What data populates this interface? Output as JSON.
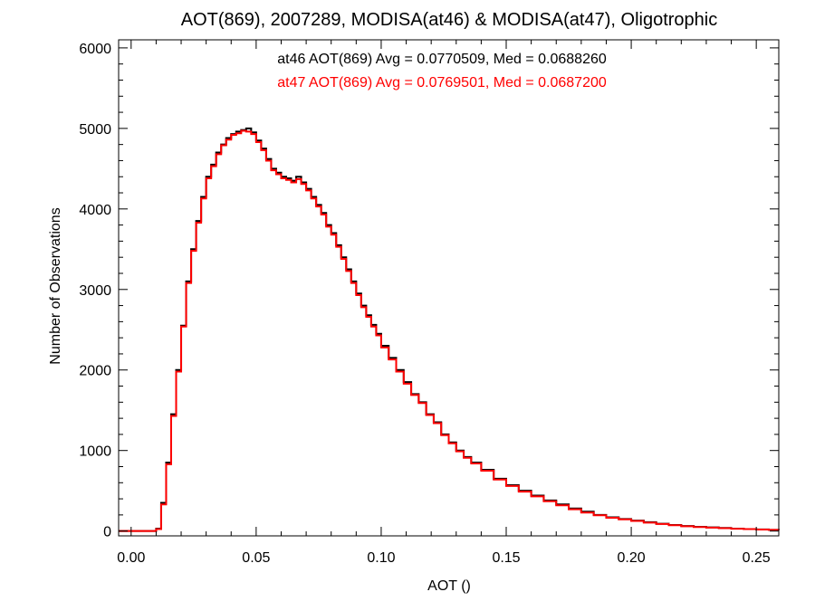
{
  "chart_data": {
    "type": "line",
    "title": "AOT(869), 2007289, MODISA(at46) & MODISA(at47), Oligotrophic",
    "xlabel": "AOT ()",
    "ylabel": "Number of Observations",
    "xlim": [
      -0.005,
      0.259
    ],
    "ylim": [
      -60,
      6100
    ],
    "x_ticks": [
      0.0,
      0.05,
      0.1,
      0.15,
      0.2,
      0.25
    ],
    "x_tick_labels": [
      "0.00",
      "0.05",
      "0.10",
      "0.15",
      "0.20",
      "0.25"
    ],
    "y_ticks": [
      0,
      1000,
      2000,
      3000,
      4000,
      5000,
      6000
    ],
    "y_tick_labels": [
      "0",
      "1000",
      "2000",
      "3000",
      "4000",
      "5000",
      "6000"
    ],
    "grid": false,
    "step": true,
    "annotations": [
      {
        "text": "at46 AOT(869) Avg = 0.0770509, Med = 0.0688260",
        "color": "#000000"
      },
      {
        "text": "at47 AOT(869) Avg = 0.0769501, Med = 0.0687200",
        "color": "#ff0000"
      }
    ],
    "x": [
      -0.005,
      0.0,
      0.005,
      0.01,
      0.012,
      0.014,
      0.016,
      0.018,
      0.02,
      0.022,
      0.024,
      0.026,
      0.028,
      0.03,
      0.032,
      0.034,
      0.036,
      0.038,
      0.04,
      0.042,
      0.044,
      0.046,
      0.048,
      0.05,
      0.052,
      0.054,
      0.056,
      0.058,
      0.06,
      0.062,
      0.064,
      0.066,
      0.068,
      0.07,
      0.072,
      0.074,
      0.076,
      0.078,
      0.08,
      0.082,
      0.084,
      0.086,
      0.088,
      0.09,
      0.092,
      0.094,
      0.096,
      0.098,
      0.1,
      0.103,
      0.106,
      0.109,
      0.112,
      0.115,
      0.118,
      0.121,
      0.124,
      0.127,
      0.13,
      0.133,
      0.136,
      0.14,
      0.145,
      0.15,
      0.155,
      0.16,
      0.165,
      0.17,
      0.175,
      0.18,
      0.185,
      0.19,
      0.195,
      0.2,
      0.205,
      0.21,
      0.215,
      0.22,
      0.225,
      0.23,
      0.235,
      0.24,
      0.245,
      0.25,
      0.255,
      0.259
    ],
    "series": [
      {
        "color": "#000000",
        "values": [
          0,
          0,
          0,
          30,
          350,
          850,
          1450,
          2000,
          2550,
          3100,
          3500,
          3850,
          4150,
          4400,
          4550,
          4700,
          4800,
          4880,
          4930,
          4960,
          4980,
          5000,
          4950,
          4850,
          4750,
          4620,
          4500,
          4450,
          4400,
          4380,
          4350,
          4400,
          4330,
          4250,
          4150,
          4050,
          3950,
          3800,
          3700,
          3550,
          3400,
          3250,
          3100,
          2950,
          2800,
          2680,
          2560,
          2450,
          2300,
          2150,
          2000,
          1850,
          1700,
          1600,
          1450,
          1350,
          1200,
          1100,
          1000,
          920,
          850,
          760,
          650,
          570,
          500,
          440,
          380,
          330,
          280,
          240,
          200,
          170,
          150,
          130,
          110,
          90,
          75,
          62,
          52,
          45,
          38,
          30,
          25,
          20,
          15,
          12
        ]
      },
      {
        "color": "#ff0000",
        "values": [
          0,
          0,
          0,
          25,
          330,
          830,
          1430,
          1980,
          2540,
          3080,
          3480,
          3830,
          4130,
          4380,
          4530,
          4680,
          4790,
          4860,
          4920,
          4940,
          4970,
          4960,
          4930,
          4830,
          4730,
          4600,
          4480,
          4430,
          4380,
          4360,
          4330,
          4370,
          4310,
          4230,
          4130,
          4030,
          3930,
          3780,
          3680,
          3530,
          3380,
          3230,
          3080,
          2930,
          2780,
          2660,
          2540,
          2430,
          2280,
          2130,
          1980,
          1830,
          1690,
          1590,
          1440,
          1340,
          1190,
          1090,
          990,
          910,
          840,
          750,
          640,
          560,
          490,
          430,
          370,
          320,
          270,
          230,
          195,
          165,
          145,
          125,
          105,
          88,
          72,
          60,
          50,
          43,
          36,
          29,
          24,
          19,
          14,
          11
        ]
      }
    ]
  }
}
